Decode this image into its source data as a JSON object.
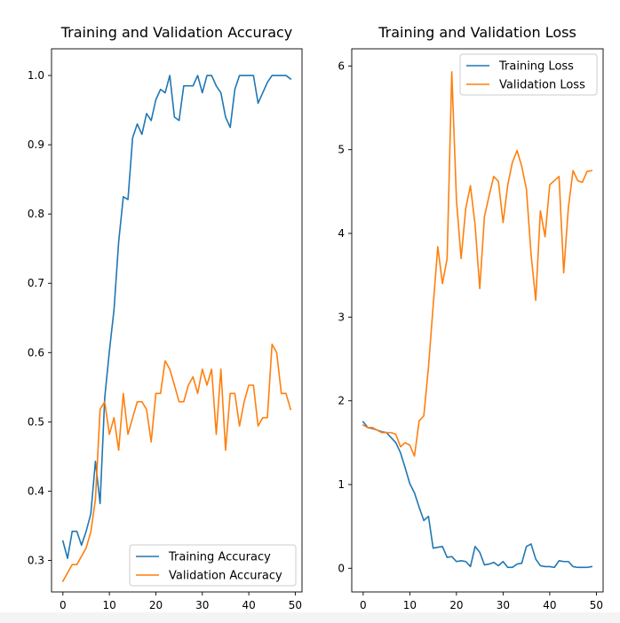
{
  "colors": {
    "training": "#1f77b4",
    "validation": "#ff7f0e",
    "axes": "#000000"
  },
  "chart_data": [
    {
      "type": "line",
      "title": "Training and Validation Accuracy",
      "xlabel": "",
      "ylabel": "",
      "xlim": [
        -2.45,
        51.45
      ],
      "ylim": [
        0.2545,
        1.0385
      ],
      "xticks": [
        0,
        10,
        20,
        30,
        40,
        50
      ],
      "yticks": [
        0.3,
        0.4,
        0.5,
        0.6,
        0.7,
        0.8,
        0.9,
        1.0
      ],
      "ytick_labels": [
        "0.3",
        "0.4",
        "0.5",
        "0.6",
        "0.7",
        "0.8",
        "0.9",
        "1.0"
      ],
      "grid": false,
      "legend_position": "lower-right",
      "x": [
        0,
        1,
        2,
        3,
        4,
        5,
        6,
        7,
        8,
        9,
        10,
        11,
        12,
        13,
        14,
        15,
        16,
        17,
        18,
        19,
        20,
        21,
        22,
        23,
        24,
        25,
        26,
        27,
        28,
        29,
        30,
        31,
        32,
        33,
        34,
        35,
        36,
        37,
        38,
        39,
        40,
        41,
        42,
        43,
        44,
        45,
        46,
        47,
        48,
        49
      ],
      "series": [
        {
          "name": "Training Accuracy",
          "values": [
            0.328,
            0.303,
            0.342,
            0.342,
            0.322,
            0.342,
            0.367,
            0.443,
            0.382,
            0.535,
            0.602,
            0.662,
            0.76,
            0.825,
            0.821,
            0.91,
            0.93,
            0.915,
            0.945,
            0.935,
            0.965,
            0.98,
            0.975,
            1.0,
            0.94,
            0.935,
            0.985,
            0.985,
            0.985,
            1.0,
            0.975,
            1.0,
            1.0,
            0.985,
            0.975,
            0.94,
            0.925,
            0.98,
            1.0,
            1.0,
            1.0,
            1.0,
            0.96,
            0.975,
            0.99,
            1.0,
            1.0,
            1.0,
            1.0,
            0.995
          ]
        },
        {
          "name": "Validation Accuracy",
          "values": [
            0.27,
            0.282,
            0.294,
            0.294,
            0.306,
            0.318,
            0.341,
            0.388,
            0.518,
            0.529,
            0.482,
            0.506,
            0.459,
            0.541,
            0.482,
            0.506,
            0.529,
            0.529,
            0.518,
            0.471,
            0.541,
            0.541,
            0.588,
            0.576,
            0.553,
            0.529,
            0.529,
            0.553,
            0.565,
            0.541,
            0.576,
            0.553,
            0.576,
            0.482,
            0.576,
            0.459,
            0.541,
            0.541,
            0.494,
            0.529,
            0.553,
            0.553,
            0.494,
            0.506,
            0.506,
            0.612,
            0.6,
            0.541,
            0.541,
            0.518
          ]
        }
      ]
    },
    {
      "type": "line",
      "title": "Training and Validation Loss",
      "xlabel": "",
      "ylabel": "",
      "xlim": [
        -2.45,
        51.45
      ],
      "ylim": [
        -0.283,
        6.205
      ],
      "xticks": [
        0,
        10,
        20,
        30,
        40,
        50
      ],
      "yticks": [
        0,
        1,
        2,
        3,
        4,
        5,
        6
      ],
      "ytick_labels": [
        "0",
        "1",
        "2",
        "3",
        "4",
        "5",
        "6"
      ],
      "grid": false,
      "legend_position": "upper-right",
      "x": [
        0,
        1,
        2,
        3,
        4,
        5,
        6,
        7,
        8,
        9,
        10,
        11,
        12,
        13,
        14,
        15,
        16,
        17,
        18,
        19,
        20,
        21,
        22,
        23,
        24,
        25,
        26,
        27,
        28,
        29,
        30,
        31,
        32,
        33,
        34,
        35,
        36,
        37,
        38,
        39,
        40,
        41,
        42,
        43,
        44,
        45,
        46,
        47,
        48,
        49
      ],
      "series": [
        {
          "name": "Training Loss",
          "values": [
            1.75,
            1.68,
            1.67,
            1.65,
            1.63,
            1.62,
            1.56,
            1.5,
            1.38,
            1.2,
            1.01,
            0.9,
            0.73,
            0.57,
            0.62,
            0.24,
            0.25,
            0.26,
            0.13,
            0.14,
            0.08,
            0.09,
            0.08,
            0.02,
            0.26,
            0.19,
            0.04,
            0.05,
            0.07,
            0.03,
            0.08,
            0.01,
            0.01,
            0.05,
            0.06,
            0.26,
            0.29,
            0.11,
            0.03,
            0.02,
            0.02,
            0.01,
            0.09,
            0.08,
            0.08,
            0.02,
            0.01,
            0.01,
            0.01,
            0.02
          ]
        },
        {
          "name": "Validation Loss",
          "values": [
            1.71,
            1.68,
            1.68,
            1.65,
            1.62,
            1.62,
            1.62,
            1.6,
            1.45,
            1.5,
            1.47,
            1.34,
            1.76,
            1.82,
            2.4,
            3.13,
            3.84,
            3.4,
            3.7,
            5.93,
            4.4,
            3.7,
            4.3,
            4.57,
            4.1,
            3.34,
            4.2,
            4.45,
            4.68,
            4.62,
            4.13,
            4.58,
            4.85,
            4.99,
            4.8,
            4.53,
            3.75,
            3.2,
            4.27,
            3.96,
            4.58,
            4.63,
            4.68,
            3.53,
            4.31,
            4.75,
            4.63,
            4.61,
            4.74,
            4.75
          ]
        }
      ]
    }
  ]
}
